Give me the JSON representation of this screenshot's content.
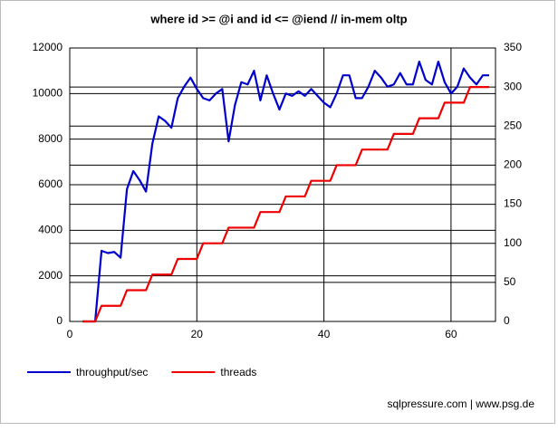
{
  "chart_data": {
    "type": "line",
    "title": "where id >= @i and id <= @iend // in-mem oltp",
    "footer": "sqlpressure.com | www.psg.de",
    "x": [
      2,
      3,
      4,
      5,
      6,
      7,
      8,
      9,
      10,
      11,
      12,
      13,
      14,
      15,
      16,
      17,
      18,
      19,
      20,
      21,
      22,
      23,
      24,
      25,
      26,
      27,
      28,
      29,
      30,
      31,
      32,
      33,
      34,
      35,
      36,
      37,
      38,
      39,
      40,
      41,
      42,
      43,
      44,
      45,
      46,
      47,
      48,
      49,
      50,
      51,
      52,
      53,
      54,
      55,
      56,
      57,
      58,
      59,
      60,
      61,
      62,
      63,
      64,
      65,
      66
    ],
    "series": [
      {
        "name": "throughput/sec",
        "color": "#0000cc",
        "values": [
          0,
          0,
          0,
          3100,
          3000,
          3050,
          2800,
          5800,
          6600,
          6200,
          5700,
          7800,
          9000,
          8800,
          8500,
          9800,
          10300,
          10700,
          10200,
          9800,
          9700,
          10000,
          10200,
          7900,
          9500,
          10500,
          10400,
          11000,
          9700,
          10800,
          10000,
          9300,
          10000,
          9900,
          10100,
          9900,
          10200,
          9900,
          9600,
          9400,
          10000,
          10800,
          10800,
          9800,
          9800,
          10300,
          11000,
          10700,
          10300,
          10400,
          10900,
          10400,
          10400,
          11400,
          10600,
          10400,
          11400,
          10500,
          10000,
          10300,
          11100,
          10700,
          10400,
          10800,
          10800
        ]
      },
      {
        "name": "threads",
        "color": "#ee0000",
        "axis": "y2",
        "values": [
          0,
          0,
          0,
          20,
          20,
          20,
          20,
          40,
          40,
          40,
          40,
          60,
          60,
          60,
          60,
          80,
          80,
          80,
          80,
          100,
          100,
          100,
          100,
          120,
          120,
          120,
          120,
          120,
          140,
          140,
          140,
          140,
          160,
          160,
          160,
          160,
          180,
          180,
          180,
          180,
          200,
          200,
          200,
          200,
          220,
          220,
          220,
          220,
          220,
          240,
          240,
          240,
          240,
          260,
          260,
          260,
          260,
          280,
          280,
          280,
          280,
          300,
          300,
          300,
          300
        ]
      }
    ],
    "xlim": [
      0,
      67
    ],
    "xticks": [
      0,
      20,
      40,
      60
    ],
    "ylim": [
      0,
      12000
    ],
    "yticks": [
      0,
      2000,
      4000,
      6000,
      8000,
      10000,
      12000
    ],
    "y2lim": [
      0,
      350
    ],
    "y2ticks": [
      0,
      50,
      100,
      150,
      200,
      250,
      300,
      350
    ],
    "grid": true,
    "legend": "bottom-left"
  }
}
